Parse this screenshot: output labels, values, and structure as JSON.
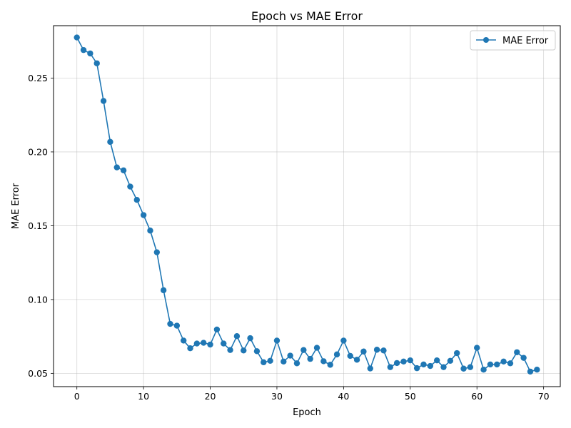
{
  "chart_data": {
    "type": "line",
    "title": "Epoch vs MAE Error",
    "xlabel": "Epoch",
    "ylabel": "MAE Error",
    "xlim": [
      -3.5,
      72.5
    ],
    "ylim": [
      0.041,
      0.2855
    ],
    "xticks": [
      0,
      10,
      20,
      30,
      40,
      50,
      60,
      70
    ],
    "yticks": [
      0.05,
      0.1,
      0.15,
      0.2,
      0.25
    ],
    "ytick_labels": [
      "0.05",
      "0.10",
      "0.15",
      "0.20",
      "0.25"
    ],
    "grid": true,
    "legend_position": "top-right",
    "color": "#1f77b4",
    "series": [
      {
        "name": "MAE Error",
        "x": [
          0,
          1,
          2,
          3,
          4,
          5,
          6,
          7,
          8,
          9,
          10,
          11,
          12,
          13,
          14,
          15,
          16,
          17,
          18,
          19,
          20,
          21,
          22,
          23,
          24,
          25,
          26,
          27,
          28,
          29,
          30,
          31,
          32,
          33,
          34,
          35,
          36,
          37,
          38,
          39,
          40,
          41,
          42,
          43,
          44,
          45,
          46,
          47,
          48,
          49,
          50,
          51,
          52,
          53,
          54,
          55,
          56,
          57,
          58,
          59,
          60,
          61,
          62,
          63,
          64,
          65,
          66,
          67,
          68,
          69
        ],
        "values": [
          0.2775,
          0.269,
          0.2667,
          0.26,
          0.2345,
          0.2068,
          0.1895,
          0.1875,
          0.1765,
          0.1675,
          0.1572,
          0.1467,
          0.132,
          0.1063,
          0.0835,
          0.0823,
          0.0722,
          0.067,
          0.0702,
          0.0707,
          0.0695,
          0.0797,
          0.0702,
          0.0658,
          0.0752,
          0.0655,
          0.0738,
          0.065,
          0.0575,
          0.0585,
          0.0722,
          0.058,
          0.062,
          0.0568,
          0.0658,
          0.0598,
          0.0673,
          0.0582,
          0.0558,
          0.0628,
          0.0722,
          0.0618,
          0.0592,
          0.0648,
          0.0533,
          0.066,
          0.0655,
          0.0542,
          0.057,
          0.058,
          0.0588,
          0.0535,
          0.056,
          0.055,
          0.0588,
          0.0542,
          0.0585,
          0.0637,
          0.0532,
          0.0542,
          0.0673,
          0.0525,
          0.056,
          0.056,
          0.058,
          0.0568,
          0.0643,
          0.0605,
          0.0512,
          0.0525
        ]
      }
    ]
  }
}
